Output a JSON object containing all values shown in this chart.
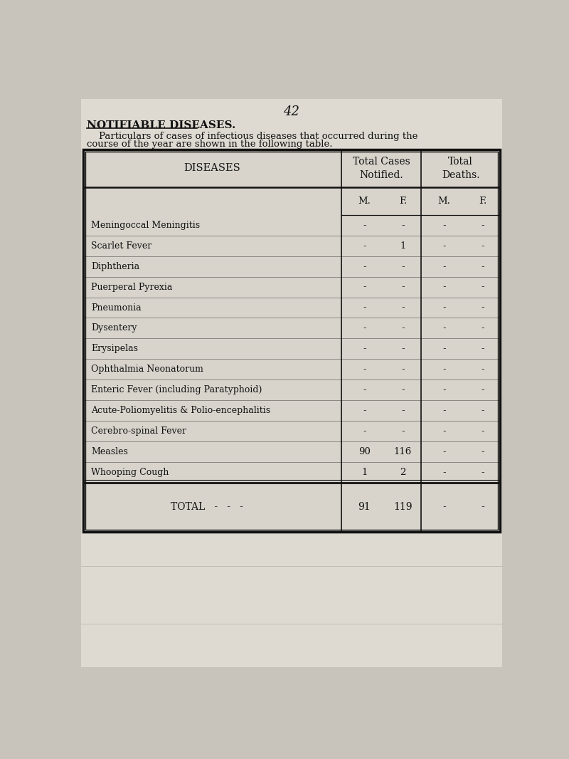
{
  "page_number": "42",
  "title": "NOTIFIABLE DISEASES.",
  "subtitle_line1": "    Particulars of cases of infectious diseases that occurred during the",
  "subtitle_line2": "course of the year are shown in the following table.",
  "col_headers": [
    "DISEASES",
    "Total Cases\nNotified.",
    "Total\nDeaths."
  ],
  "diseases": [
    "Meningoccal Meningitis",
    "Scarlet Fever",
    "Diphtheria",
    "Puerperal Pyrexia",
    "Pneumonia",
    "Dysentery",
    "Erysipelas",
    "Ophthalmia Neonatorum",
    "Enteric Fever (including Paratyphoid)",
    "Acute-Poliomyelitis & Polio-encephalitis",
    "Cerebro-spinal Fever",
    "Measles",
    "Whooping Cough"
  ],
  "cases_M": [
    "-",
    "-",
    "-",
    "-",
    "-",
    "-",
    "-",
    "-",
    "-",
    "-",
    "-",
    "90",
    "1"
  ],
  "cases_F": [
    "-",
    "1",
    "-",
    "-",
    "-",
    "-",
    "-",
    "-",
    "-",
    "-",
    "-",
    "116",
    "2"
  ],
  "deaths_M": [
    "-",
    "-",
    "-",
    "-",
    "-",
    "-",
    "-",
    "-",
    "-",
    "-",
    "-",
    "-",
    "-"
  ],
  "deaths_F": [
    "-",
    "-",
    "-",
    "-",
    "-",
    "-",
    "-",
    "-",
    "-",
    "-",
    "-",
    "-",
    "-"
  ],
  "total_label": "TOTAL   -   -   -",
  "total_cases_M": "91",
  "total_cases_F": "119",
  "total_deaths_M": "-",
  "total_deaths_F": "-",
  "bg_color": "#c8c4bc",
  "page_color": "#dedad2",
  "table_bg": "#d8d4cc",
  "text_color": "#111111",
  "font_family": "DejaVu Serif"
}
